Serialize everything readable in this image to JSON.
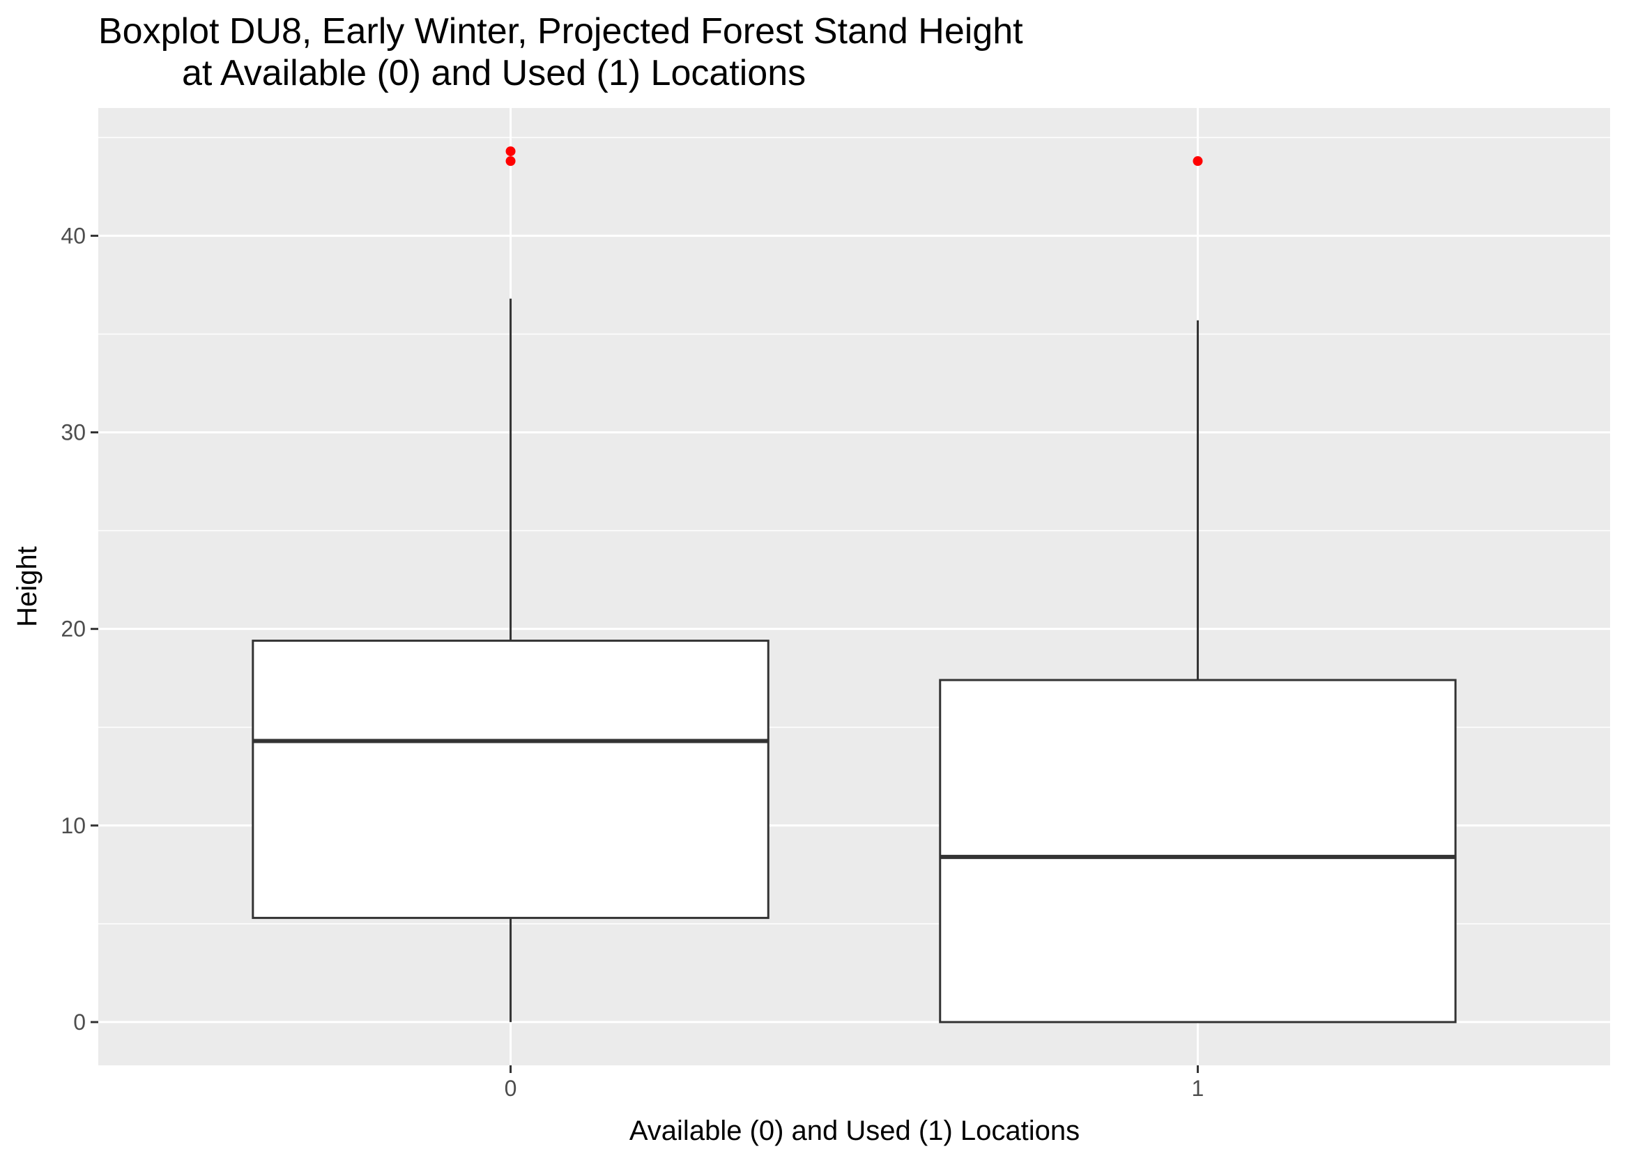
{
  "chart_data": {
    "type": "boxplot",
    "title": "Boxplot DU8, Early Winter, Projected Forest Stand Height",
    "subtitle": "at Available (0) and Used (1) Locations",
    "xlabel": "Available (0) and Used (1) Locations",
    "ylabel": "Height",
    "categories": [
      "0",
      "1"
    ],
    "ylim": [
      -2.2,
      46.5
    ],
    "yticks": [
      0,
      10,
      20,
      30,
      40
    ],
    "ytick_labels": [
      "0",
      "10",
      "20",
      "30",
      "40"
    ],
    "grid": true,
    "boxes": [
      {
        "category": "0",
        "whisker_low": 0,
        "q1": 5.3,
        "median": 14.3,
        "q3": 19.4,
        "whisker_high": 36.8,
        "outliers": [
          43.8,
          44.3
        ]
      },
      {
        "category": "1",
        "whisker_low": 0,
        "q1": 0,
        "median": 8.4,
        "q3": 17.4,
        "whisker_high": 35.7,
        "outliers": [
          43.8
        ]
      }
    ],
    "colors": {
      "panel_background": "#EBEBEB",
      "grid": "#FFFFFF",
      "box_fill": "#FFFFFF",
      "box_line": "#333333",
      "outlier": "#FF0000"
    }
  }
}
